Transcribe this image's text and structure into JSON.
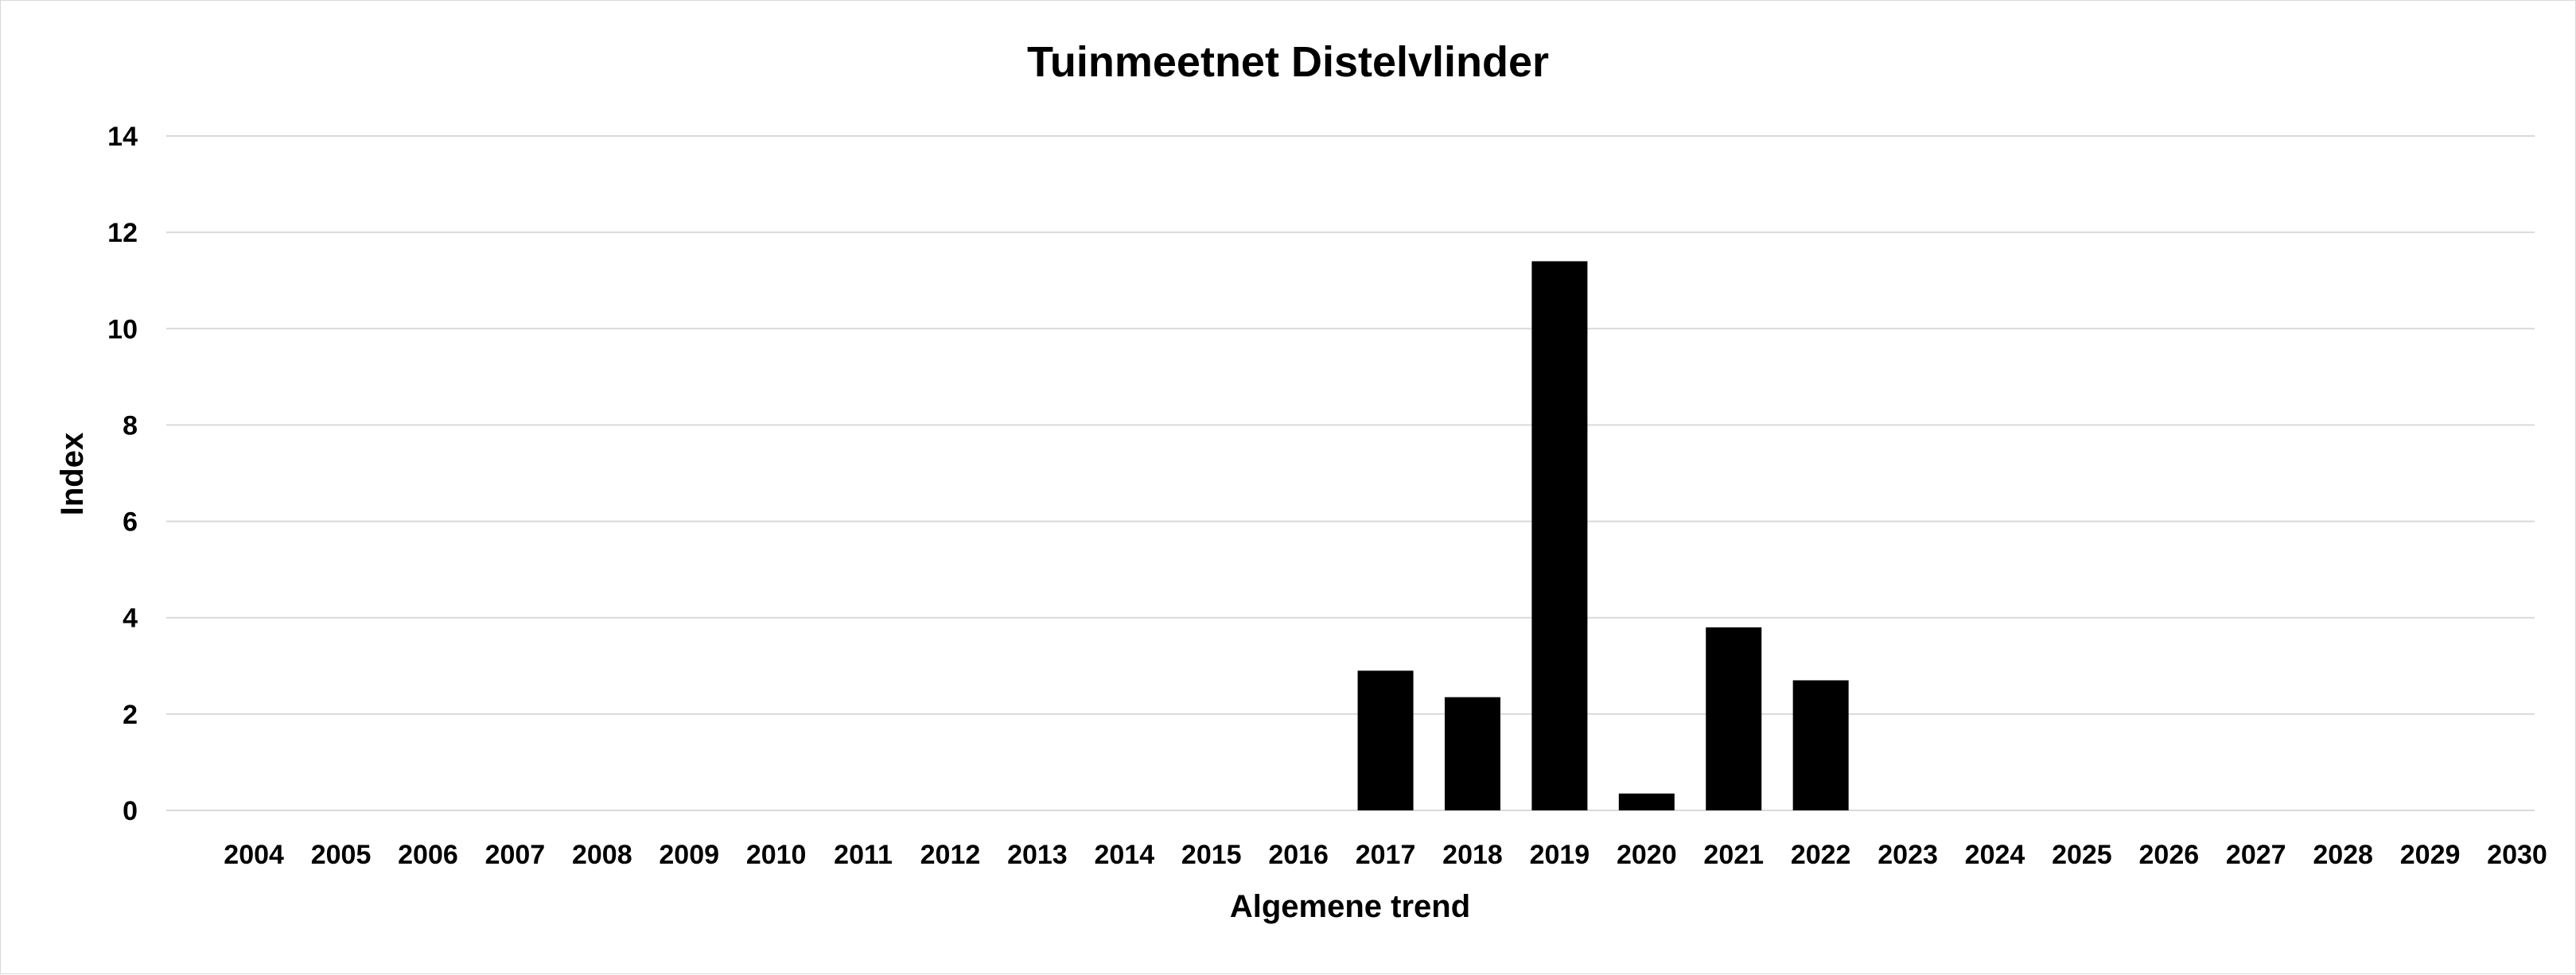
{
  "chart_data": {
    "type": "bar",
    "title": "Tuinmeetnet Distelvlinder",
    "xlabel": "Algemene trend",
    "ylabel": "Index",
    "ylim": [
      0,
      14
    ],
    "yticks": [
      0,
      2,
      4,
      6,
      8,
      10,
      12,
      14
    ],
    "grid": true,
    "legend": "none",
    "bar_color": "#000000",
    "grid_color": "#d9d9d9",
    "categories": [
      "2004",
      "2005",
      "2006",
      "2007",
      "2008",
      "2009",
      "2010",
      "2011",
      "2012",
      "2013",
      "2014",
      "2015",
      "2016",
      "2017",
      "2018",
      "2019",
      "2020",
      "2021",
      "2022",
      "2023",
      "2024",
      "2025",
      "2026",
      "2027",
      "2028",
      "2029",
      "2030"
    ],
    "values": [
      null,
      null,
      null,
      null,
      null,
      null,
      null,
      null,
      null,
      null,
      null,
      null,
      null,
      2.9,
      2.35,
      11.4,
      0.35,
      3.8,
      2.7,
      null,
      null,
      null,
      null,
      null,
      null,
      null,
      null
    ]
  }
}
